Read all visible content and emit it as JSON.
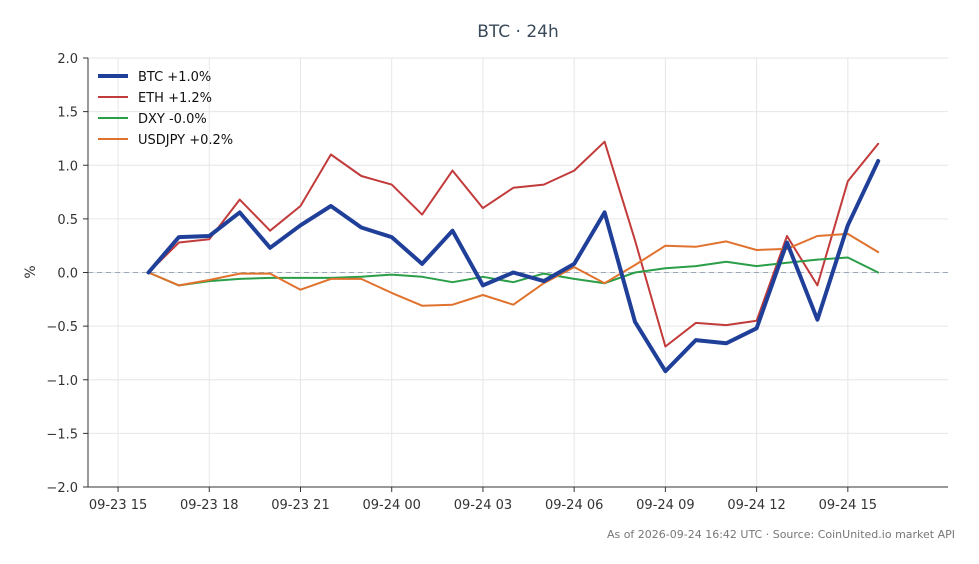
{
  "chart_data": {
    "type": "line",
    "title": "BTC · 24h",
    "xlabel": "",
    "ylabel": "%",
    "ylim": [
      -2.0,
      2.0
    ],
    "y_ticks": [
      "2.0",
      "1.5",
      "1.0",
      "0.5",
      "0.0",
      "−0.5",
      "−1.0",
      "−1.5",
      "−2.0"
    ],
    "y_tick_values": [
      2.0,
      1.5,
      1.0,
      0.5,
      0.0,
      -0.5,
      -1.0,
      -1.5,
      -2.0
    ],
    "xlim_hours": [
      14.85,
      16.2
    ],
    "x_ticks": [
      "09-23 15",
      "09-23 18",
      "09-23 21",
      "09-24 00",
      "09-24 03",
      "09-24 06",
      "09-24 09",
      "09-24 12",
      "09-24 15"
    ],
    "x_tick_times": [
      "2026-09-23 15:00",
      "2026-09-23 18:00",
      "2026-09-23 21:00",
      "2026-09-24 00:00",
      "2026-09-24 03:00",
      "2026-09-24 06:00",
      "2026-09-24 09:00",
      "2026-09-24 12:00",
      "2026-09-24 15:00"
    ],
    "x": [
      "2026-09-23 16:00",
      "2026-09-23 17:00",
      "2026-09-23 18:00",
      "2026-09-23 19:00",
      "2026-09-23 20:00",
      "2026-09-23 21:00",
      "2026-09-23 22:00",
      "2026-09-23 23:00",
      "2026-09-24 00:00",
      "2026-09-24 01:00",
      "2026-09-24 02:00",
      "2026-09-24 03:00",
      "2026-09-24 04:00",
      "2026-09-24 05:00",
      "2026-09-24 06:00",
      "2026-09-24 07:00",
      "2026-09-24 08:00",
      "2026-09-24 09:00",
      "2026-09-24 10:00",
      "2026-09-24 11:00",
      "2026-09-24 12:00",
      "2026-09-24 13:00",
      "2026-09-24 14:00",
      "2026-09-24 15:00",
      "2026-09-24 16:00"
    ],
    "zero_line": true,
    "grid": true,
    "legend_position": "top-left",
    "series": [
      {
        "name": "BTC +1.0%",
        "color": "#1f3f99",
        "width": "bold",
        "values": [
          0.0,
          0.33,
          0.34,
          0.56,
          0.23,
          0.44,
          0.62,
          0.42,
          0.33,
          0.08,
          0.39,
          -0.12,
          0.0,
          -0.08,
          0.08,
          0.56,
          -0.46,
          -0.92,
          -0.63,
          -0.66,
          -0.52,
          0.28,
          -0.44,
          0.44,
          1.04
        ]
      },
      {
        "name": "ETH +1.2%",
        "color": "#c23b3b",
        "width": "normal",
        "values": [
          0.0,
          0.28,
          0.31,
          0.68,
          0.39,
          0.62,
          1.1,
          0.9,
          0.82,
          0.54,
          0.95,
          0.6,
          0.79,
          0.82,
          0.95,
          1.22,
          0.3,
          -0.69,
          -0.47,
          -0.49,
          -0.45,
          0.34,
          -0.12,
          0.85,
          1.2
        ]
      },
      {
        "name": "DXY -0.0%",
        "color": "#2b9e48",
        "width": "normal",
        "values": [
          0.0,
          -0.12,
          -0.08,
          -0.06,
          -0.05,
          -0.05,
          -0.05,
          -0.04,
          -0.02,
          -0.04,
          -0.09,
          -0.04,
          -0.09,
          -0.01,
          -0.06,
          -0.1,
          0.0,
          0.04,
          0.06,
          0.1,
          0.06,
          0.09,
          0.12,
          0.14,
          0.0
        ]
      },
      {
        "name": "USDJPY +0.2%",
        "color": "#e0722e",
        "width": "normal",
        "values": [
          0.0,
          -0.12,
          -0.07,
          -0.01,
          -0.01,
          -0.16,
          -0.06,
          -0.06,
          -0.19,
          -0.31,
          -0.3,
          -0.21,
          -0.3,
          -0.1,
          0.05,
          -0.1,
          0.07,
          0.25,
          0.24,
          0.29,
          0.21,
          0.22,
          0.34,
          0.36,
          0.19
        ]
      }
    ]
  },
  "footer": "As of 2026-09-24 16:42 UTC · Source: CoinUnited.io market API"
}
